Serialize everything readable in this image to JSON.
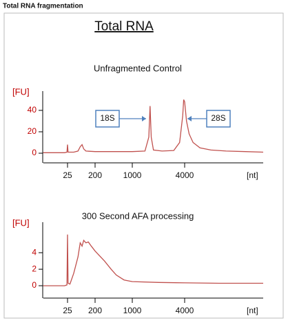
{
  "header": {
    "title": "Total RNA fragmentation"
  },
  "figure_title": "Total RNA",
  "chart_data": [
    {
      "type": "line",
      "title": "Unfragmented Control",
      "ylabel": "[FU]",
      "xlabel": "[nt]",
      "xscale": "log",
      "x": [
        4,
        20,
        24,
        25,
        26,
        40,
        55,
        65,
        75,
        85,
        100,
        200,
        500,
        1000,
        1400,
        1550,
        1600,
        1650,
        1750,
        2200,
        3000,
        3500,
        3800,
        3900,
        4000,
        4200,
        4500,
        5000,
        6000,
        8000,
        12000,
        20000,
        32000
      ],
      "values": [
        0.5,
        0.5,
        1,
        8,
        1,
        1,
        2,
        6,
        8,
        4,
        2,
        1.5,
        1.5,
        1.5,
        2,
        15,
        44,
        15,
        3,
        2,
        2.5,
        10,
        35,
        50,
        48,
        30,
        18,
        10,
        5,
        3,
        2,
        1.5,
        1
      ],
      "color": "#c0504d",
      "xlim": [
        4,
        32000
      ],
      "xticks": [
        25,
        200,
        1000,
        4000
      ],
      "ylim": [
        -9,
        58
      ],
      "yticks": [
        0,
        20,
        40
      ],
      "annotations": [
        "18S",
        "28S"
      ]
    },
    {
      "type": "line",
      "title": "300 Second AFA processing",
      "ylabel": "[FU]",
      "xlabel": "[nt]",
      "xscale": "log",
      "x": [
        4,
        20,
        24,
        25,
        26,
        30,
        40,
        55,
        65,
        75,
        85,
        100,
        120,
        150,
        200,
        300,
        400,
        500,
        700,
        1000,
        2000,
        4000,
        10000,
        32000
      ],
      "values": [
        0,
        0,
        0.1,
        6.2,
        0.3,
        0.2,
        1.5,
        3.5,
        5.2,
        4.8,
        5.5,
        5.2,
        5.3,
        4.8,
        4.2,
        3.0,
        2.0,
        1.3,
        0.7,
        0.5,
        0.4,
        0.35,
        0.3,
        0.3
      ],
      "color": "#c0504d",
      "xlim": [
        4,
        32000
      ],
      "xticks": [
        25,
        200,
        1000,
        4000
      ],
      "ylim": [
        -1.5,
        7.7
      ],
      "yticks": [
        0,
        2,
        4
      ]
    }
  ]
}
